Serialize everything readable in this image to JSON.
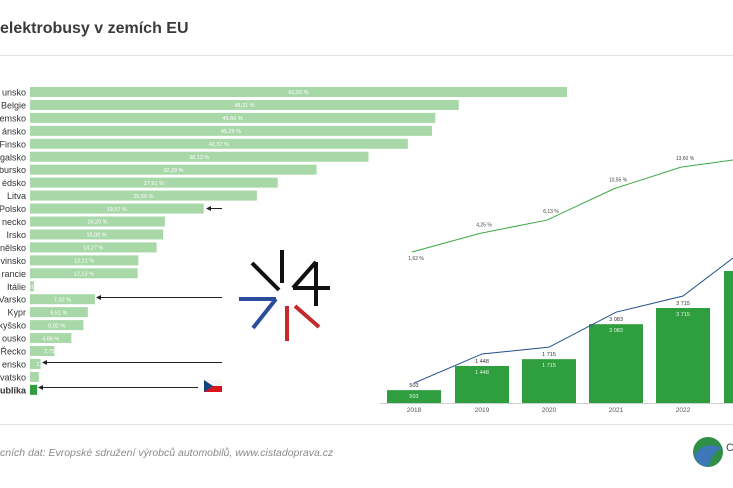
{
  "title": "elektrobusy v zemích EU",
  "footer": "cních dat: Evropské sdružení výrobců automobilů, www.cistadoprava.cz",
  "logo_text": "C D",
  "colors": {
    "bar_light": "#a8d8a8",
    "bar_dark": "#2f9e3f",
    "line_green": "#3ea845",
    "line_blue": "#1f4e8c",
    "highlight": "#2f9e3f"
  },
  "chart_data": [
    {
      "type": "bar",
      "orientation": "horizontal",
      "categories": [
        "unsko",
        "Belgie",
        "emsko",
        "ánsko",
        "Finsko",
        "galsko",
        "bursko",
        "édsko",
        "Litva",
        "Polsko",
        "necko",
        "Irsko",
        "nělsko",
        "vinsko",
        "rancie",
        "Itálie",
        "Varsko",
        "Kypr",
        "kyšsko",
        "ousko",
        "Řecko",
        "ensko",
        "vatsko",
        "ublika"
      ],
      "values": [
        60.5,
        48.31,
        45.66,
        45.29,
        42.57,
        38.13,
        32.29,
        27.91,
        25.56,
        19.57,
        15.2,
        15.0,
        14.27,
        12.21,
        12.13,
        0.01,
        7.32,
        6.51,
        6.02,
        4.66,
        2.75,
        1.2,
        1.0,
        0.8
      ],
      "labels": [
        "60,50 %",
        "48,31 %",
        "45,66 %",
        "45,29 %",
        "42,57 %",
        "38,13 %",
        "32,29 %",
        "27,91 %",
        "25,56 %",
        "19,57 %",
        "15,20 %",
        "15,00 %",
        "14,27 %",
        "12,21 %",
        "12,13 %",
        "0,01 %",
        "7,32 %",
        "6,51 %",
        "6,02 %",
        "4,66 %",
        "2,75 %",
        "1,",
        "",
        ""
      ],
      "highlight_index": 23
    },
    {
      "type": "bar",
      "categories": [
        "2018",
        "2019",
        "2020",
        "2021",
        "2022"
      ],
      "values": [
        503,
        1448,
        1715,
        3083,
        3715
      ],
      "labels": [
        "503",
        "1 448",
        "1 715",
        "3 083",
        "3 715"
      ]
    },
    {
      "type": "line",
      "x": [
        "2018",
        "2019",
        "2020",
        "2021",
        "2022"
      ],
      "values": [
        1.62,
        4.25,
        6.13,
        10.55,
        13.6
      ],
      "labels": [
        "1,62 %",
        "4,25 %",
        "6,13 %",
        "10,55 %",
        "13,60 %"
      ]
    }
  ]
}
